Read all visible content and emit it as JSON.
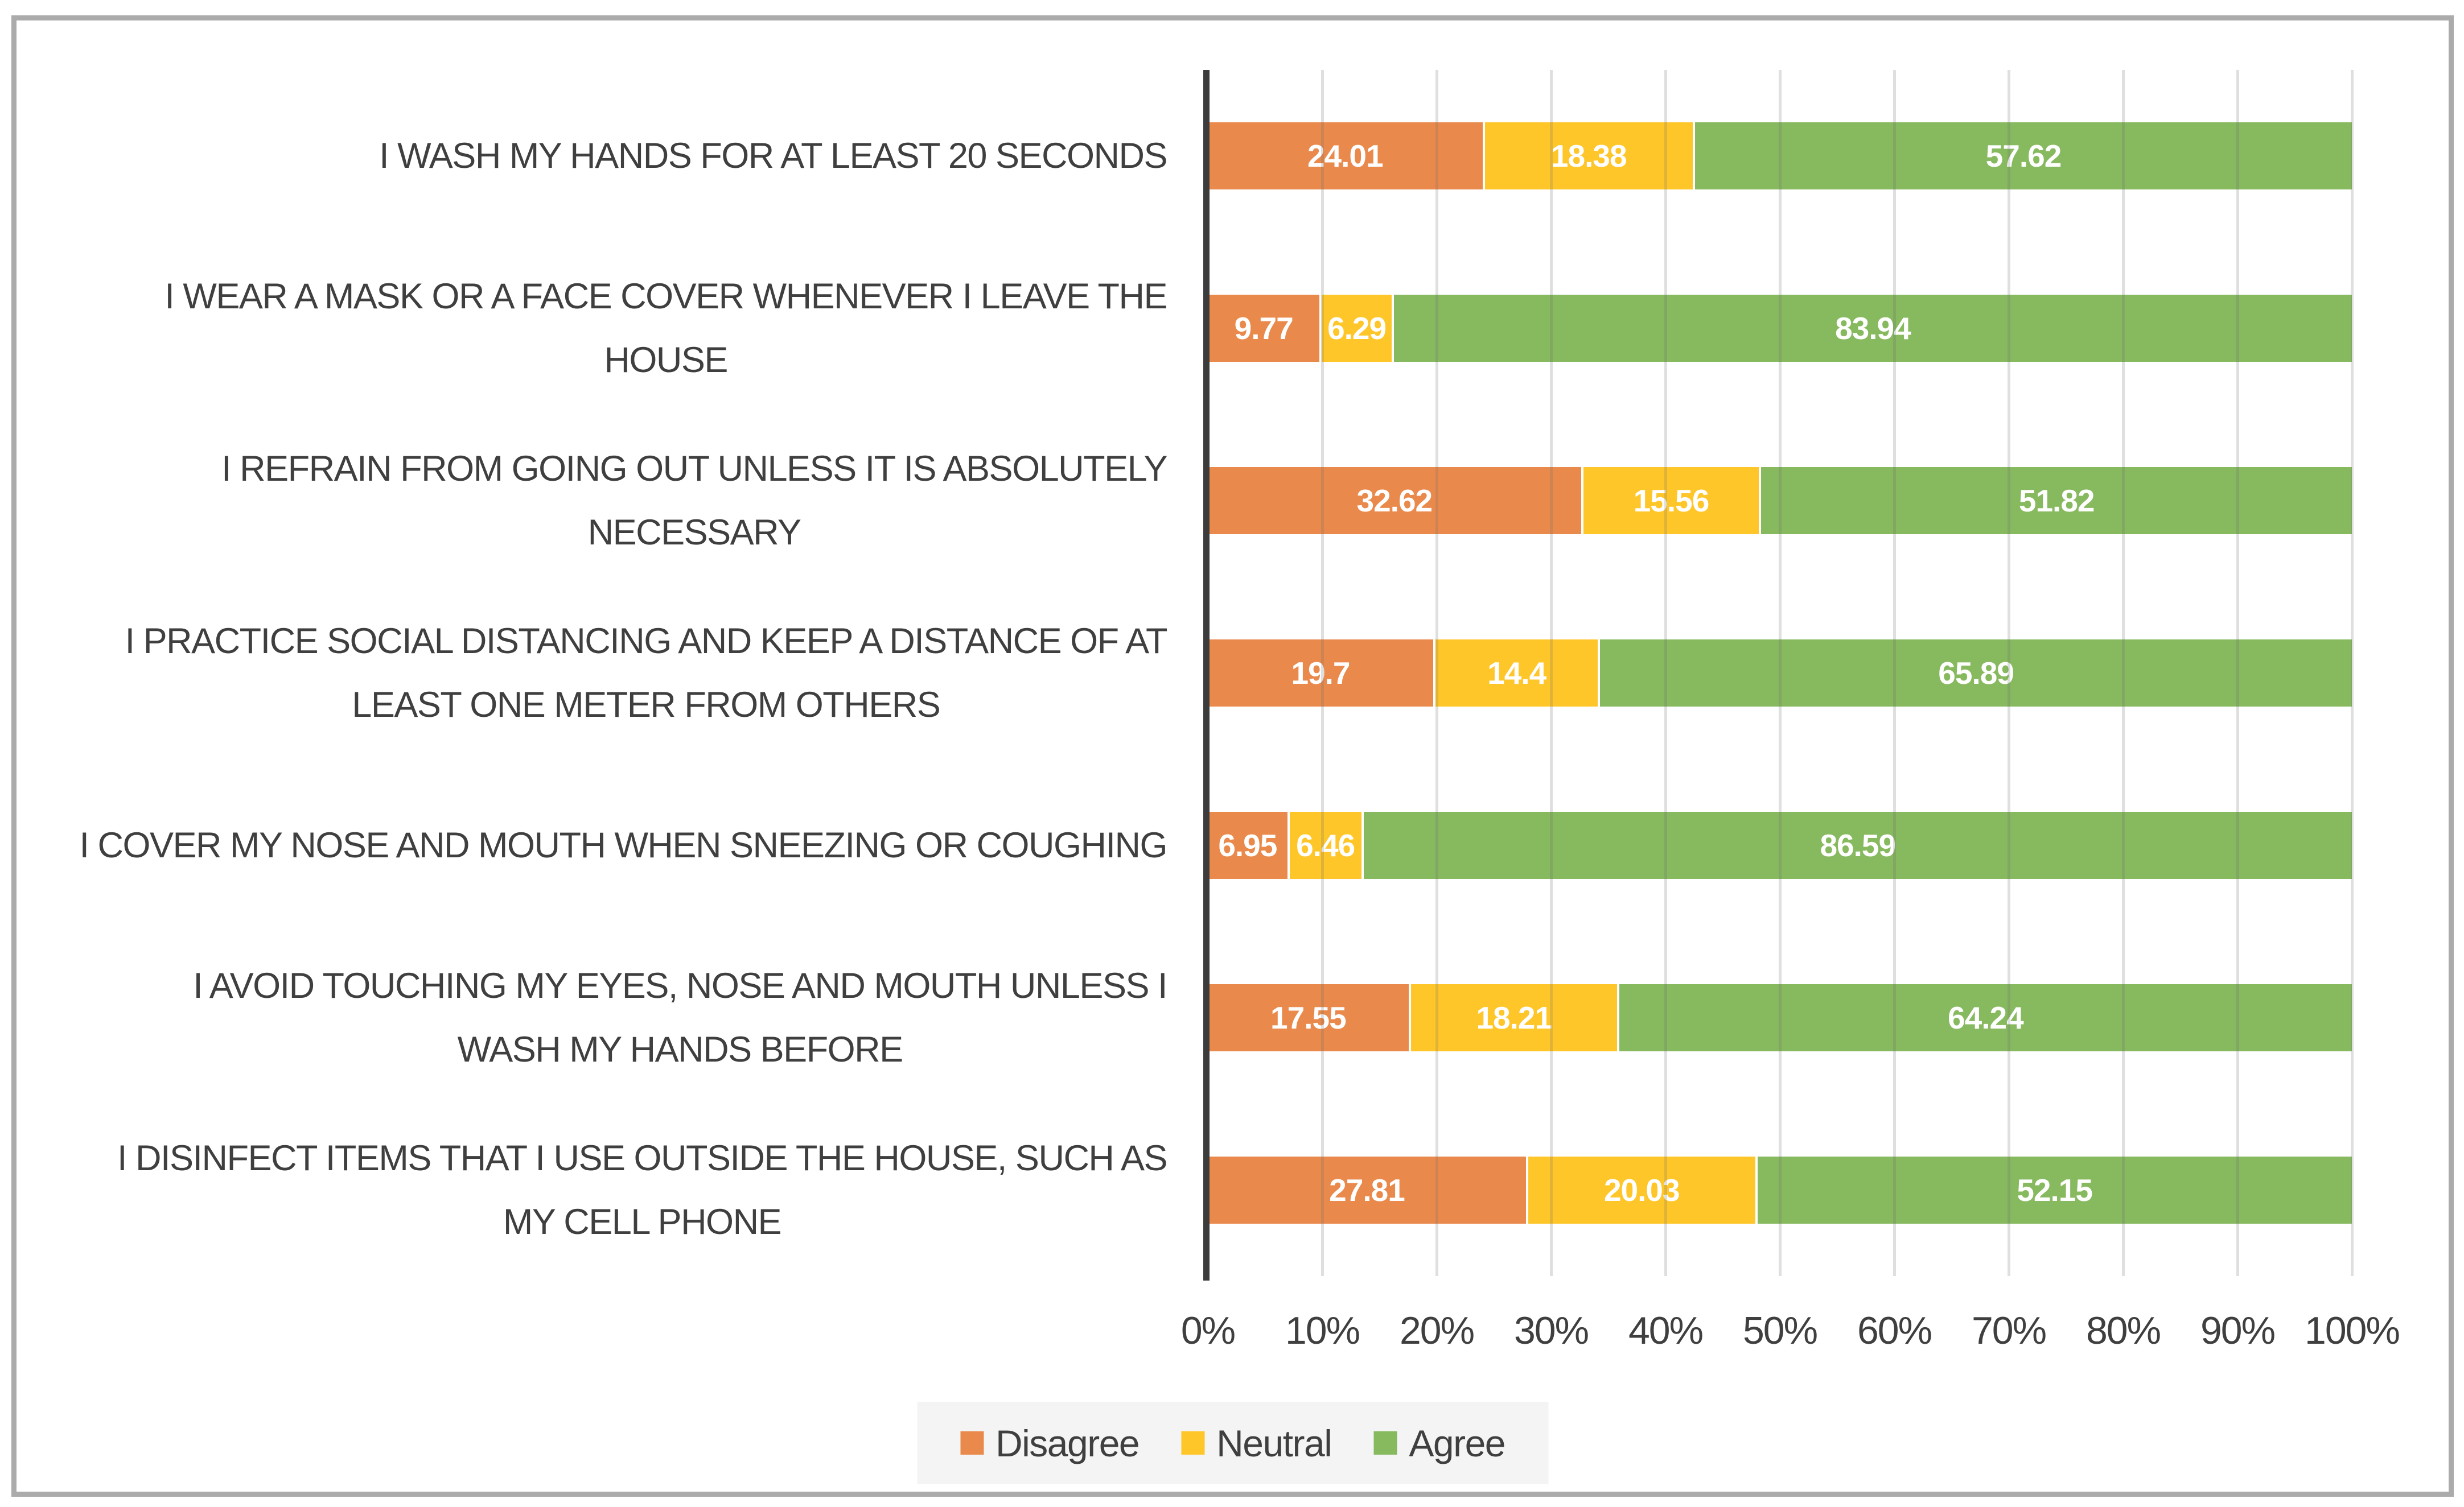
{
  "chart_data": {
    "type": "bar",
    "orientation": "horizontal-stacked",
    "title": "",
    "xlabel": "",
    "ylabel": "",
    "xlim": [
      0,
      100
    ],
    "grid": true,
    "legend_position": "bottom",
    "x_ticks": [
      "0%",
      "10%",
      "20%",
      "30%",
      "40%",
      "50%",
      "60%",
      "70%",
      "80%",
      "90%",
      "100%"
    ],
    "categories": [
      "I WASH MY HANDS FOR AT LEAST 20 SECONDS",
      "I WEAR A MASK OR A FACE COVER WHENEVER I LEAVE THE\nHOUSE",
      "I REFRAIN FROM GOING OUT UNLESS IT IS ABSOLUTELY\nNECESSARY",
      "I PRACTICE SOCIAL DISTANCING AND KEEP A DISTANCE OF AT\nLEAST ONE METER FROM OTHERS",
      "I COVER MY NOSE AND MOUTH WHEN SNEEZING OR COUGHING",
      "I AVOID TOUCHING MY EYES, NOSE AND MOUTH UNLESS I\nWASH MY HANDS BEFORE",
      "I DISINFECT ITEMS THAT I USE OUTSIDE THE HOUSE, SUCH AS\nMY CELL PHONE"
    ],
    "series": [
      {
        "name": "Disagree",
        "color": "#E98A4C",
        "values": [
          24.01,
          9.77,
          32.62,
          19.7,
          6.95,
          17.55,
          27.81
        ],
        "labels": [
          "24.01",
          "9.77",
          "32.62",
          "19.7",
          "6.95",
          "17.55",
          "27.81"
        ]
      },
      {
        "name": "Neutral",
        "color": "#FFC62A",
        "values": [
          18.38,
          6.29,
          15.56,
          14.4,
          6.46,
          18.21,
          20.03
        ],
        "labels": [
          "18.38",
          "6.29",
          "15.56",
          "14.4",
          "6.46",
          "18.21",
          "20.03"
        ]
      },
      {
        "name": "Agree",
        "color": "#87B95F",
        "values": [
          57.62,
          83.94,
          51.82,
          65.89,
          86.59,
          64.24,
          52.15
        ],
        "labels": [
          "57.62",
          "83.94",
          "51.82",
          "65.89",
          "86.59",
          "64.24",
          "52.15"
        ]
      }
    ]
  },
  "style_colors": {
    "frame_border": "#ABABAB",
    "axis_line": "#3C3C3C",
    "gridline": "#D9D9D9",
    "text": "#3F3F3F",
    "value_text": "#FFFFFF",
    "legend_background": "#F4F4F4"
  }
}
